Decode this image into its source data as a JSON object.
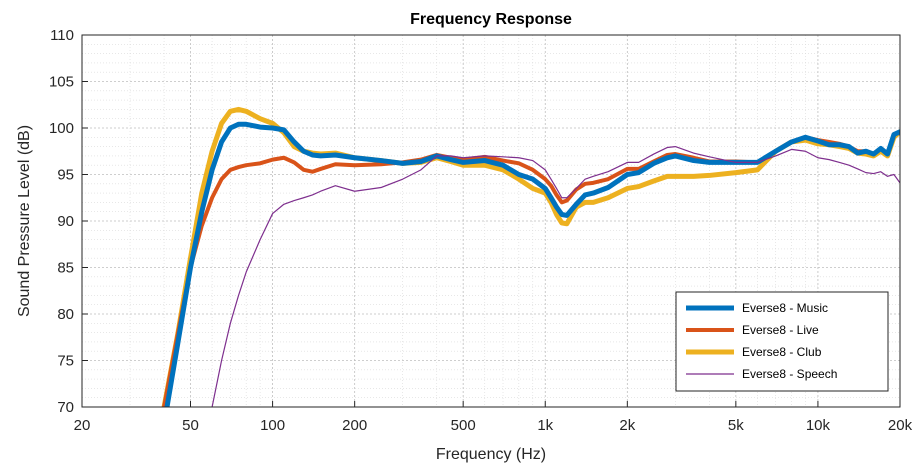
{
  "chart_data": {
    "type": "line",
    "title": "Frequency Response",
    "xlabel": "Frequency (Hz)",
    "ylabel": "Sound Pressure Level (dB)",
    "x_scale": "log",
    "xlim": [
      20,
      20000
    ],
    "ylim": [
      70,
      110
    ],
    "x_ticks": [
      20,
      50,
      100,
      200,
      500,
      1000,
      2000,
      5000,
      10000,
      20000
    ],
    "x_tick_labels": [
      "20",
      "50",
      "100",
      "200",
      "500",
      "1k",
      "2k",
      "5k",
      "10k",
      "20k"
    ],
    "y_ticks": [
      70,
      75,
      80,
      85,
      90,
      95,
      100,
      105,
      110
    ],
    "y_tick_labels": [
      "70",
      "75",
      "80",
      "85",
      "90",
      "95",
      "100",
      "105",
      "110"
    ],
    "grid": true,
    "minor_grid": true,
    "legend_position": "bottom-right",
    "series": [
      {
        "name": "Everse8 - Music",
        "color": "#0072BD",
        "x": [
          41,
          45,
          50,
          55,
          60,
          65,
          70,
          75,
          80,
          90,
          100,
          110,
          120,
          130,
          140,
          150,
          170,
          200,
          250,
          300,
          350,
          400,
          450,
          500,
          600,
          700,
          800,
          900,
          1000,
          1050,
          1100,
          1150,
          1200,
          1300,
          1400,
          1500,
          1700,
          2000,
          2200,
          2500,
          2800,
          3000,
          3500,
          4000,
          5000,
          6000,
          7000,
          8000,
          9000,
          10000,
          11000,
          12000,
          13000,
          14000,
          15000,
          16000,
          17000,
          18000,
          19000,
          20000
        ],
        "y": [
          70,
          77,
          85,
          91,
          95.5,
          98.5,
          100,
          100.4,
          100.4,
          100.1,
          100,
          99.8,
          98.5,
          97.5,
          97.1,
          97,
          97.1,
          96.8,
          96.5,
          96.2,
          96.4,
          97,
          96.6,
          96.3,
          96.5,
          96,
          95,
          94.5,
          93.5,
          92.5,
          91.5,
          90.7,
          90.6,
          91.8,
          92.8,
          93,
          93.6,
          95,
          95.2,
          96.2,
          96.8,
          97,
          96.5,
          96.3,
          96.3,
          96.3,
          97.5,
          98.5,
          99,
          98.6,
          98.2,
          98.2,
          98,
          97.3,
          97.5,
          97.2,
          97.8,
          97.2,
          99.3,
          99.6
        ]
      },
      {
        "name": "Everse8 - Live",
        "color": "#D95319",
        "x": [
          40,
          45,
          50,
          55,
          60,
          65,
          70,
          75,
          80,
          90,
          100,
          110,
          120,
          130,
          140,
          150,
          170,
          200,
          250,
          300,
          350,
          400,
          450,
          500,
          600,
          700,
          800,
          900,
          1000,
          1050,
          1100,
          1150,
          1200,
          1300,
          1400,
          1500,
          1700,
          2000,
          2200,
          2500,
          2800,
          3000,
          3500,
          4000,
          5000,
          6000,
          7000,
          8000,
          9000,
          10000,
          11000,
          12000,
          13000,
          14000,
          15000,
          16000,
          17000,
          18000,
          19000,
          20000
        ],
        "y": [
          70,
          78,
          85,
          89.5,
          92.5,
          94.5,
          95.5,
          95.8,
          96,
          96.2,
          96.6,
          96.8,
          96.3,
          95.5,
          95.3,
          95.6,
          96.1,
          96,
          96.1,
          96.3,
          96.6,
          97.1,
          96.8,
          96.6,
          96.9,
          96.5,
          96.2,
          95.5,
          94.5,
          93.8,
          92.8,
          92,
          92.2,
          93.4,
          94,
          94.1,
          94.5,
          95.6,
          95.6,
          96.4,
          97.1,
          97.2,
          96.8,
          96.4,
          96.4,
          96.3,
          97.5,
          98.5,
          99,
          98.7,
          98.5,
          98.3,
          98,
          97.5,
          97.5,
          97.2,
          97.8,
          97.2,
          99.3,
          99.6
        ]
      },
      {
        "name": "Everse8 - Club",
        "color": "#EDB120",
        "x": [
          40,
          45,
          50,
          55,
          60,
          65,
          70,
          75,
          80,
          90,
          100,
          110,
          120,
          130,
          140,
          150,
          170,
          200,
          250,
          300,
          350,
          400,
          450,
          500,
          600,
          700,
          800,
          900,
          1000,
          1050,
          1100,
          1150,
          1200,
          1300,
          1400,
          1500,
          1700,
          2000,
          2200,
          2500,
          2800,
          3000,
          3500,
          4000,
          5000,
          6000,
          7000,
          8000,
          9000,
          10000,
          11000,
          12000,
          13000,
          14000,
          15000,
          16000,
          17000,
          18000,
          19000,
          20000
        ],
        "y": [
          70,
          78,
          86,
          93,
          97.5,
          100.5,
          101.8,
          102,
          101.8,
          101,
          100.5,
          99.5,
          98,
          97.5,
          97.3,
          97.2,
          97.3,
          96.8,
          96.5,
          96.2,
          96.3,
          96.8,
          96.4,
          96,
          96,
          95.5,
          94.5,
          93.5,
          93,
          92,
          90.7,
          89.8,
          89.7,
          91.5,
          92,
          92,
          92.5,
          93.5,
          93.7,
          94.3,
          94.8,
          94.8,
          94.8,
          94.9,
          95.2,
          95.5,
          97.5,
          98.5,
          98.7,
          98.3,
          98.2,
          98,
          97.8,
          97.3,
          97.2,
          97,
          97.5,
          97,
          99,
          99.6
        ]
      },
      {
        "name": "Everse8 - Speech",
        "color": "#7E2F8E",
        "x": [
          60,
          65,
          70,
          75,
          80,
          90,
          100,
          110,
          120,
          130,
          140,
          150,
          170,
          200,
          250,
          300,
          350,
          400,
          450,
          500,
          600,
          700,
          800,
          900,
          1000,
          1050,
          1100,
          1150,
          1200,
          1300,
          1400,
          1500,
          1700,
          2000,
          2200,
          2500,
          2800,
          3000,
          3500,
          4000,
          5000,
          6000,
          7000,
          8000,
          9000,
          10000,
          11000,
          12000,
          13000,
          14000,
          15000,
          16000,
          17000,
          18000,
          19000,
          20000
        ],
        "y": [
          70,
          75,
          79,
          82,
          84.5,
          88,
          90.8,
          91.8,
          92.2,
          92.5,
          92.8,
          93.2,
          93.8,
          93.2,
          93.6,
          94.5,
          95.5,
          97,
          97,
          96.8,
          97,
          96.9,
          96.8,
          96.5,
          95.5,
          94.5,
          93.5,
          92.5,
          92.5,
          93.5,
          94.5,
          94.8,
          95.3,
          96.3,
          96.3,
          97.2,
          97.9,
          98,
          97.3,
          96.9,
          96.3,
          96.3,
          97,
          97.7,
          97.5,
          96.8,
          96.6,
          96.3,
          96,
          95.6,
          95.2,
          95.1,
          95.3,
          94.8,
          95,
          94.1
        ]
      }
    ]
  }
}
